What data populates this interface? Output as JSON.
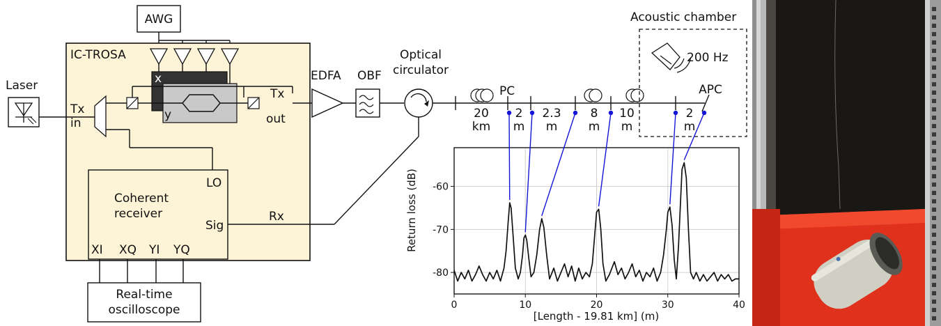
{
  "setup": {
    "awg": "AWG",
    "ic_trosa": "IC-TROSA",
    "laser": "Laser",
    "tx_in_1": "Tx",
    "tx_in_2": "in",
    "tx_out_1": "Tx",
    "tx_out_2": "out",
    "x_label": "x",
    "y_label": "y",
    "edfa": "EDFA",
    "obf": "OBF",
    "circulator_1": "Optical",
    "circulator_2": "circulator",
    "coherent_1": "Coherent",
    "coherent_2": "receiver",
    "lo": "LO",
    "sig": "Sig",
    "rx": "Rx",
    "xi": "XI",
    "xq": "XQ",
    "yi": "YI",
    "yq": "YQ",
    "scope_1": "Real-time",
    "scope_2": "oscilloscope"
  },
  "fiber": {
    "pc": "PC",
    "apc": "APC",
    "acoustic_chamber": "Acoustic chamber",
    "tone": "200 Hz",
    "spans": [
      {
        "top": "20",
        "bottom": "km"
      },
      {
        "top": "2",
        "bottom": "m"
      },
      {
        "top": "2.3",
        "bottom": "m"
      },
      {
        "top": "8",
        "bottom": "m"
      },
      {
        "top": "10",
        "bottom": "m"
      },
      {
        "top": "2",
        "bottom": "m"
      }
    ]
  },
  "colors": {
    "trosa_fill": "#fdf3d6",
    "marker_blue": "#1414d8",
    "modulator_dark": "#333333",
    "modulator_light": "#c9c9c9"
  },
  "chart_data": {
    "type": "line",
    "xlabel": "[Length - 19.81 km]  (m)",
    "ylabel": "Return loss (dB)",
    "xlim": [
      0,
      40
    ],
    "ylim": [
      -85,
      -51
    ],
    "xticks": [
      0,
      10,
      20,
      30,
      40
    ],
    "yticks": [
      -60,
      -70,
      -80
    ],
    "grid": true,
    "markers_x": [
      7.8,
      10.0,
      12.3,
      20.3,
      30.3,
      32.3
    ],
    "x": [
      0,
      0.5,
      1,
      1.5,
      2,
      2.5,
      3,
      3.5,
      4,
      4.5,
      5,
      5.5,
      6,
      6.5,
      7,
      7.3,
      7.6,
      7.8,
      8.0,
      8.3,
      8.6,
      9,
      9.3,
      9.6,
      9.8,
      10.0,
      10.2,
      10.5,
      10.8,
      11.2,
      11.6,
      12.0,
      12.3,
      12.6,
      13.0,
      13.4,
      14,
      14.5,
      15,
      15.5,
      16,
      16.5,
      17,
      17.5,
      18,
      18.5,
      19,
      19.4,
      19.8,
      20.0,
      20.3,
      20.6,
      20.9,
      21.3,
      21.8,
      22.5,
      23,
      23.5,
      24,
      24.5,
      25,
      25.5,
      26,
      26.5,
      27,
      27.5,
      28,
      28.5,
      29,
      29.4,
      29.8,
      30.0,
      30.3,
      30.6,
      30.9,
      31.2,
      31.5,
      31.8,
      32.0,
      32.3,
      32.6,
      32.9,
      33.2,
      33.6,
      34,
      34.5,
      35,
      35.5,
      36,
      36.5,
      37,
      37.5,
      38,
      38.5,
      39,
      39.5,
      40
    ],
    "y": [
      -79.5,
      -82,
      -80,
      -81.5,
      -79.5,
      -82,
      -80.5,
      -78.5,
      -80.5,
      -82,
      -80,
      -81.5,
      -79.5,
      -82,
      -79,
      -75,
      -68,
      -63.8,
      -65,
      -72,
      -79,
      -81.5,
      -80,
      -76,
      -72,
      -71.3,
      -72.5,
      -77,
      -81,
      -80,
      -76,
      -70,
      -67.5,
      -69.5,
      -76,
      -81.5,
      -79,
      -82,
      -80,
      -78,
      -81,
      -78.5,
      -82,
      -79,
      -81.5,
      -80,
      -81,
      -78,
      -70,
      -66,
      -65.3,
      -70,
      -78,
      -82,
      -80.5,
      -77.5,
      -80.5,
      -79,
      -81.5,
      -80,
      -78,
      -81,
      -79.5,
      -82,
      -80,
      -81,
      -79,
      -82,
      -80,
      -76,
      -70,
      -66,
      -64.8,
      -69,
      -77,
      -81.5,
      -74,
      -63,
      -56,
      -54.5,
      -58,
      -70,
      -80,
      -81.5,
      -80,
      -82,
      -80.5,
      -82,
      -81,
      -80,
      -82,
      -80.5,
      -81.5,
      -80.5,
      -82,
      -81.5,
      -81.5
    ]
  }
}
